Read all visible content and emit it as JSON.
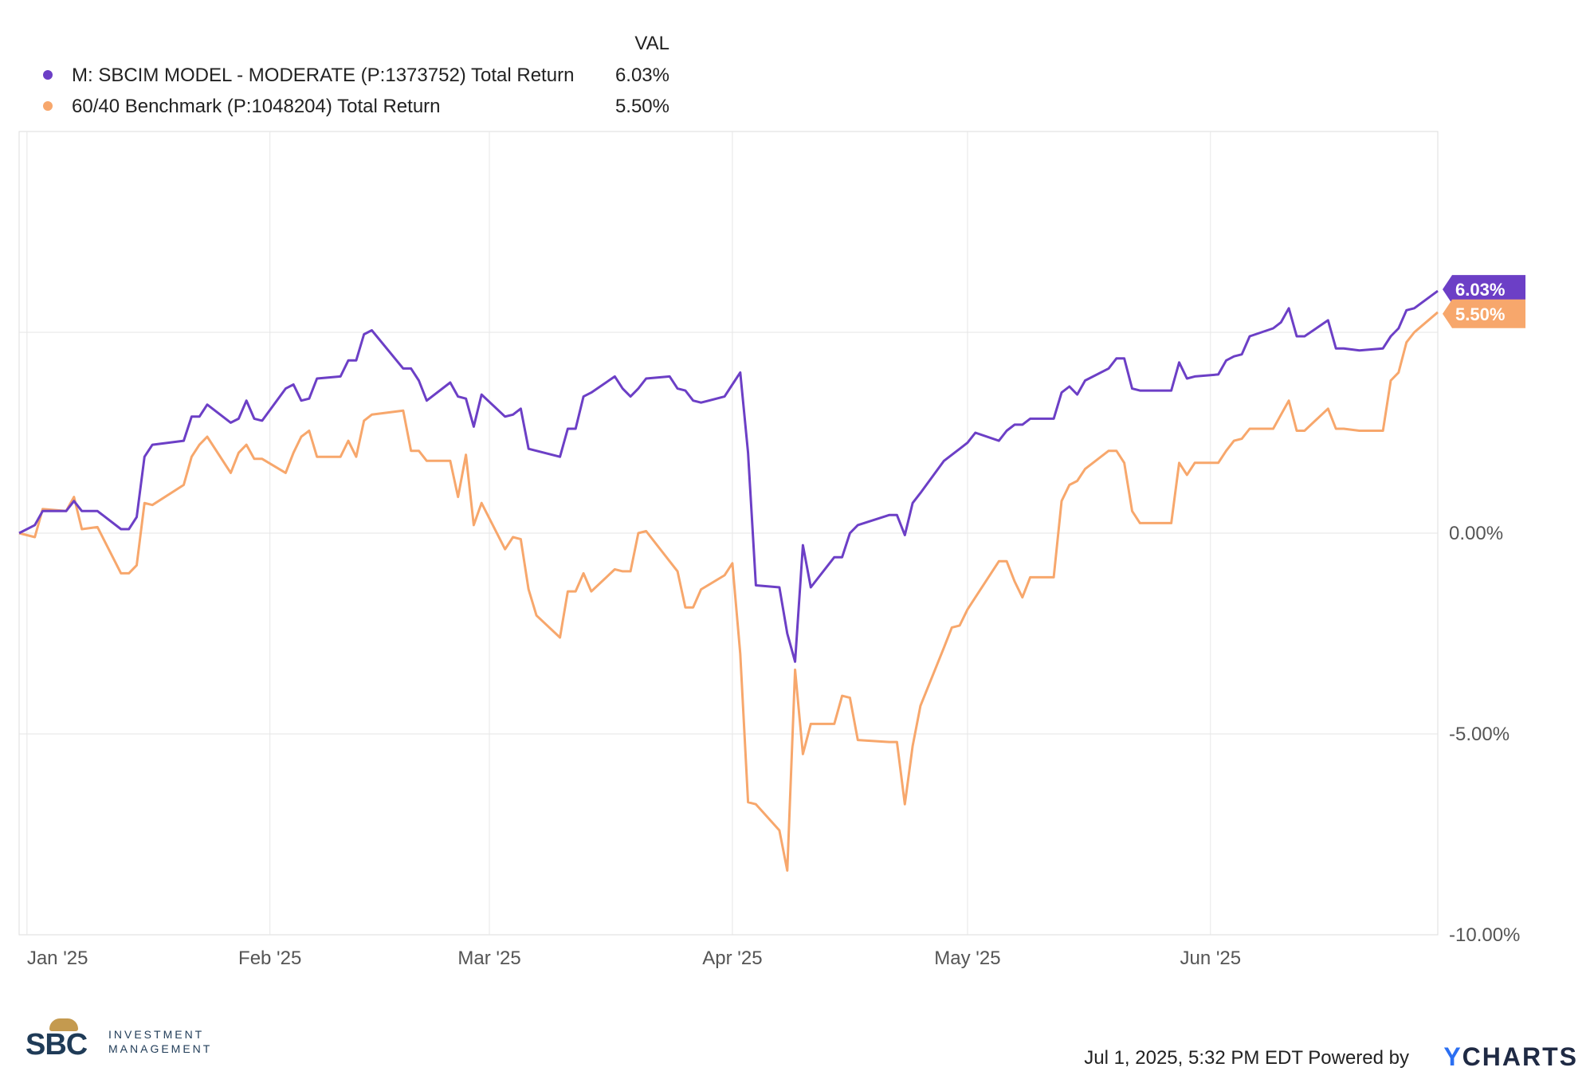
{
  "legend": {
    "header": "VAL",
    "items": [
      {
        "name": "M: SBCIM MODEL - MODERATE (P:1373752) Total Return",
        "value": "6.03%"
      },
      {
        "name": "60/40 Benchmark (P:1048204) Total Return",
        "value": "5.50%"
      }
    ]
  },
  "colors": {
    "series1": "#6c3fc6",
    "series2": "#f7a76c",
    "grid": "#e6e6e6"
  },
  "chart_data": {
    "type": "line",
    "x_range": [
      "2024-12-31",
      "2025-06-30"
    ],
    "ylim": [
      -10,
      10
    ],
    "grid": true,
    "legend_position": "top-left",
    "x_ticks": [
      {
        "label": "Jan '25",
        "date": "2025-01-01"
      },
      {
        "label": "Feb '25",
        "date": "2025-02-01"
      },
      {
        "label": "Mar '25",
        "date": "2025-03-01"
      },
      {
        "label": "Apr '25",
        "date": "2025-04-01"
      },
      {
        "label": "May '25",
        "date": "2025-05-01"
      },
      {
        "label": "Jun '25",
        "date": "2025-06-01"
      }
    ],
    "y_ticks": [
      {
        "label": "0.00%",
        "value": 0
      },
      {
        "label": "-5.00%",
        "value": -5
      },
      {
        "label": "-10.00%",
        "value": -10
      }
    ],
    "series": [
      {
        "name": "M: SBCIM MODEL - MODERATE (P:1373752) Total Return",
        "end_label": "6.03%",
        "points": [
          [
            "2024-12-31",
            0.0
          ],
          [
            "2025-01-02",
            0.2
          ],
          [
            "2025-01-03",
            0.55
          ],
          [
            "2025-01-06",
            0.55
          ],
          [
            "2025-01-07",
            0.8
          ],
          [
            "2025-01-08",
            0.55
          ],
          [
            "2025-01-10",
            0.55
          ],
          [
            "2025-01-13",
            0.1
          ],
          [
            "2025-01-14",
            0.1
          ],
          [
            "2025-01-15",
            0.4
          ],
          [
            "2025-01-16",
            1.9
          ],
          [
            "2025-01-17",
            2.2
          ],
          [
            "2025-01-21",
            2.3
          ],
          [
            "2025-01-22",
            2.9
          ],
          [
            "2025-01-23",
            2.9
          ],
          [
            "2025-01-24",
            3.2
          ],
          [
            "2025-01-27",
            2.75
          ],
          [
            "2025-01-28",
            2.85
          ],
          [
            "2025-01-29",
            3.3
          ],
          [
            "2025-01-30",
            2.85
          ],
          [
            "2025-01-31",
            2.8
          ],
          [
            "2025-02-03",
            3.6
          ],
          [
            "2025-02-04",
            3.7
          ],
          [
            "2025-02-05",
            3.3
          ],
          [
            "2025-02-06",
            3.35
          ],
          [
            "2025-02-07",
            3.85
          ],
          [
            "2025-02-10",
            3.9
          ],
          [
            "2025-02-11",
            4.3
          ],
          [
            "2025-02-12",
            4.3
          ],
          [
            "2025-02-13",
            4.95
          ],
          [
            "2025-02-14",
            5.05
          ],
          [
            "2025-02-18",
            4.1
          ],
          [
            "2025-02-19",
            4.1
          ],
          [
            "2025-02-20",
            3.8
          ],
          [
            "2025-02-21",
            3.3
          ],
          [
            "2025-02-24",
            3.75
          ],
          [
            "2025-02-25",
            3.4
          ],
          [
            "2025-02-26",
            3.35
          ],
          [
            "2025-02-27",
            2.65
          ],
          [
            "2025-02-28",
            3.45
          ],
          [
            "2025-03-03",
            2.9
          ],
          [
            "2025-03-04",
            2.95
          ],
          [
            "2025-03-05",
            3.1
          ],
          [
            "2025-03-06",
            2.1
          ],
          [
            "2025-03-07",
            2.05
          ],
          [
            "2025-03-10",
            1.9
          ],
          [
            "2025-03-11",
            2.6
          ],
          [
            "2025-03-12",
            2.6
          ],
          [
            "2025-03-13",
            3.4
          ],
          [
            "2025-03-14",
            3.5
          ],
          [
            "2025-03-17",
            3.9
          ],
          [
            "2025-03-18",
            3.6
          ],
          [
            "2025-03-19",
            3.4
          ],
          [
            "2025-03-20",
            3.6
          ],
          [
            "2025-03-21",
            3.85
          ],
          [
            "2025-03-24",
            3.9
          ],
          [
            "2025-03-25",
            3.6
          ],
          [
            "2025-03-26",
            3.55
          ],
          [
            "2025-03-27",
            3.3
          ],
          [
            "2025-03-28",
            3.25
          ],
          [
            "2025-03-31",
            3.4
          ],
          [
            "2025-04-01",
            3.7
          ],
          [
            "2025-04-02",
            4.0
          ],
          [
            "2025-04-03",
            2.0
          ],
          [
            "2025-04-04",
            -1.3
          ],
          [
            "2025-04-07",
            -1.35
          ],
          [
            "2025-04-08",
            -2.5
          ],
          [
            "2025-04-09",
            -3.2
          ],
          [
            "2025-04-10",
            -0.3
          ],
          [
            "2025-04-11",
            -1.35
          ],
          [
            "2025-04-14",
            -0.6
          ],
          [
            "2025-04-15",
            -0.6
          ],
          [
            "2025-04-16",
            0.0
          ],
          [
            "2025-04-17",
            0.2
          ],
          [
            "2025-04-21",
            0.45
          ],
          [
            "2025-04-22",
            0.45
          ],
          [
            "2025-04-23",
            -0.05
          ],
          [
            "2025-04-24",
            0.75
          ],
          [
            "2025-04-25",
            1.0
          ],
          [
            "2025-04-28",
            1.8
          ],
          [
            "2025-04-29",
            1.95
          ],
          [
            "2025-04-30",
            2.1
          ],
          [
            "2025-05-01",
            2.25
          ],
          [
            "2025-05-02",
            2.5
          ],
          [
            "2025-05-05",
            2.3
          ],
          [
            "2025-05-06",
            2.55
          ],
          [
            "2025-05-07",
            2.7
          ],
          [
            "2025-05-08",
            2.7
          ],
          [
            "2025-05-09",
            2.85
          ],
          [
            "2025-05-12",
            2.85
          ],
          [
            "2025-05-13",
            3.5
          ],
          [
            "2025-05-14",
            3.65
          ],
          [
            "2025-05-15",
            3.45
          ],
          [
            "2025-05-16",
            3.8
          ],
          [
            "2025-05-19",
            4.1
          ],
          [
            "2025-05-20",
            4.35
          ],
          [
            "2025-05-21",
            4.35
          ],
          [
            "2025-05-22",
            3.6
          ],
          [
            "2025-05-23",
            3.55
          ],
          [
            "2025-05-27",
            3.55
          ],
          [
            "2025-05-28",
            4.25
          ],
          [
            "2025-05-29",
            3.85
          ],
          [
            "2025-05-30",
            3.9
          ],
          [
            "2025-06-02",
            3.95
          ],
          [
            "2025-06-03",
            4.3
          ],
          [
            "2025-06-04",
            4.4
          ],
          [
            "2025-06-05",
            4.45
          ],
          [
            "2025-06-06",
            4.9
          ],
          [
            "2025-06-09",
            5.1
          ],
          [
            "2025-06-10",
            5.25
          ],
          [
            "2025-06-11",
            5.6
          ],
          [
            "2025-06-12",
            4.9
          ],
          [
            "2025-06-13",
            4.9
          ],
          [
            "2025-06-16",
            5.3
          ],
          [
            "2025-06-17",
            4.6
          ],
          [
            "2025-06-18",
            4.6
          ],
          [
            "2025-06-20",
            4.55
          ],
          [
            "2025-06-23",
            4.6
          ],
          [
            "2025-06-24",
            4.9
          ],
          [
            "2025-06-25",
            5.1
          ],
          [
            "2025-06-26",
            5.55
          ],
          [
            "2025-06-27",
            5.6
          ],
          [
            "2025-06-30",
            6.03
          ]
        ]
      },
      {
        "name": "60/40 Benchmark (P:1048204) Total Return",
        "end_label": "5.50%",
        "points": [
          [
            "2024-12-31",
            0.0
          ],
          [
            "2025-01-02",
            -0.1
          ],
          [
            "2025-01-03",
            0.6
          ],
          [
            "2025-01-06",
            0.55
          ],
          [
            "2025-01-07",
            0.9
          ],
          [
            "2025-01-08",
            0.1
          ],
          [
            "2025-01-10",
            0.15
          ],
          [
            "2025-01-13",
            -1.0
          ],
          [
            "2025-01-14",
            -1.0
          ],
          [
            "2025-01-15",
            -0.8
          ],
          [
            "2025-01-16",
            0.75
          ],
          [
            "2025-01-17",
            0.7
          ],
          [
            "2025-01-21",
            1.2
          ],
          [
            "2025-01-22",
            1.9
          ],
          [
            "2025-01-23",
            2.2
          ],
          [
            "2025-01-24",
            2.4
          ],
          [
            "2025-01-27",
            1.5
          ],
          [
            "2025-01-28",
            2.0
          ],
          [
            "2025-01-29",
            2.2
          ],
          [
            "2025-01-30",
            1.85
          ],
          [
            "2025-01-31",
            1.85
          ],
          [
            "2025-02-03",
            1.5
          ],
          [
            "2025-02-04",
            2.0
          ],
          [
            "2025-02-05",
            2.4
          ],
          [
            "2025-02-06",
            2.55
          ],
          [
            "2025-02-07",
            1.9
          ],
          [
            "2025-02-10",
            1.9
          ],
          [
            "2025-02-11",
            2.3
          ],
          [
            "2025-02-12",
            1.9
          ],
          [
            "2025-02-13",
            2.8
          ],
          [
            "2025-02-14",
            2.95
          ],
          [
            "2025-02-18",
            3.05
          ],
          [
            "2025-02-19",
            2.05
          ],
          [
            "2025-02-20",
            2.05
          ],
          [
            "2025-02-21",
            1.8
          ],
          [
            "2025-02-24",
            1.8
          ],
          [
            "2025-02-25",
            0.9
          ],
          [
            "2025-02-26",
            1.95
          ],
          [
            "2025-02-27",
            0.2
          ],
          [
            "2025-02-28",
            0.75
          ],
          [
            "2025-03-03",
            -0.4
          ],
          [
            "2025-03-04",
            -0.1
          ],
          [
            "2025-03-05",
            -0.15
          ],
          [
            "2025-03-06",
            -1.4
          ],
          [
            "2025-03-07",
            -2.05
          ],
          [
            "2025-03-10",
            -2.6
          ],
          [
            "2025-03-11",
            -1.45
          ],
          [
            "2025-03-12",
            -1.45
          ],
          [
            "2025-03-13",
            -1.0
          ],
          [
            "2025-03-14",
            -1.45
          ],
          [
            "2025-03-17",
            -0.9
          ],
          [
            "2025-03-18",
            -0.95
          ],
          [
            "2025-03-19",
            -0.95
          ],
          [
            "2025-03-20",
            0.0
          ],
          [
            "2025-03-21",
            0.05
          ],
          [
            "2025-03-24",
            -0.7
          ],
          [
            "2025-03-25",
            -0.95
          ],
          [
            "2025-03-26",
            -1.85
          ],
          [
            "2025-03-27",
            -1.85
          ],
          [
            "2025-03-28",
            -1.4
          ],
          [
            "2025-03-31",
            -1.05
          ],
          [
            "2025-04-01",
            -0.75
          ],
          [
            "2025-04-02",
            -3.0
          ],
          [
            "2025-04-03",
            -6.7
          ],
          [
            "2025-04-04",
            -6.75
          ],
          [
            "2025-04-07",
            -7.4
          ],
          [
            "2025-04-08",
            -8.4
          ],
          [
            "2025-04-09",
            -3.4
          ],
          [
            "2025-04-10",
            -5.5
          ],
          [
            "2025-04-11",
            -4.75
          ],
          [
            "2025-04-14",
            -4.75
          ],
          [
            "2025-04-15",
            -4.05
          ],
          [
            "2025-04-16",
            -4.1
          ],
          [
            "2025-04-17",
            -5.15
          ],
          [
            "2025-04-21",
            -5.2
          ],
          [
            "2025-04-22",
            -5.2
          ],
          [
            "2025-04-23",
            -6.75
          ],
          [
            "2025-04-24",
            -5.3
          ],
          [
            "2025-04-25",
            -4.3
          ],
          [
            "2025-04-28",
            -2.85
          ],
          [
            "2025-04-29",
            -2.35
          ],
          [
            "2025-04-30",
            -2.3
          ],
          [
            "2025-05-01",
            -1.9
          ],
          [
            "2025-05-02",
            -1.6
          ],
          [
            "2025-05-05",
            -0.7
          ],
          [
            "2025-05-06",
            -0.7
          ],
          [
            "2025-05-07",
            -1.2
          ],
          [
            "2025-05-08",
            -1.6
          ],
          [
            "2025-05-09",
            -1.1
          ],
          [
            "2025-05-12",
            -1.1
          ],
          [
            "2025-05-13",
            0.8
          ],
          [
            "2025-05-14",
            1.2
          ],
          [
            "2025-05-15",
            1.3
          ],
          [
            "2025-05-16",
            1.6
          ],
          [
            "2025-05-19",
            2.05
          ],
          [
            "2025-05-20",
            2.05
          ],
          [
            "2025-05-21",
            1.75
          ],
          [
            "2025-05-22",
            0.55
          ],
          [
            "2025-05-23",
            0.25
          ],
          [
            "2025-05-27",
            0.25
          ],
          [
            "2025-05-28",
            1.75
          ],
          [
            "2025-05-29",
            1.45
          ],
          [
            "2025-05-30",
            1.75
          ],
          [
            "2025-06-02",
            1.75
          ],
          [
            "2025-06-03",
            2.05
          ],
          [
            "2025-06-04",
            2.3
          ],
          [
            "2025-06-05",
            2.35
          ],
          [
            "2025-06-06",
            2.6
          ],
          [
            "2025-06-09",
            2.6
          ],
          [
            "2025-06-10",
            2.95
          ],
          [
            "2025-06-11",
            3.3
          ],
          [
            "2025-06-12",
            2.55
          ],
          [
            "2025-06-13",
            2.55
          ],
          [
            "2025-06-16",
            3.1
          ],
          [
            "2025-06-17",
            2.6
          ],
          [
            "2025-06-18",
            2.6
          ],
          [
            "2025-06-20",
            2.55
          ],
          [
            "2025-06-23",
            2.55
          ],
          [
            "2025-06-24",
            3.8
          ],
          [
            "2025-06-25",
            4.0
          ],
          [
            "2025-06-26",
            4.75
          ],
          [
            "2025-06-27",
            5.0
          ],
          [
            "2025-06-30",
            5.5
          ]
        ]
      }
    ]
  },
  "footer": {
    "timestamp": "Jul 1, 2025, 5:32 PM EDT Powered by",
    "brand_y": "Y",
    "brand_rest": "CHARTS",
    "logo_sbc": "SBC",
    "logo_line1": "INVESTMENT",
    "logo_line2": "MANAGEMENT"
  }
}
